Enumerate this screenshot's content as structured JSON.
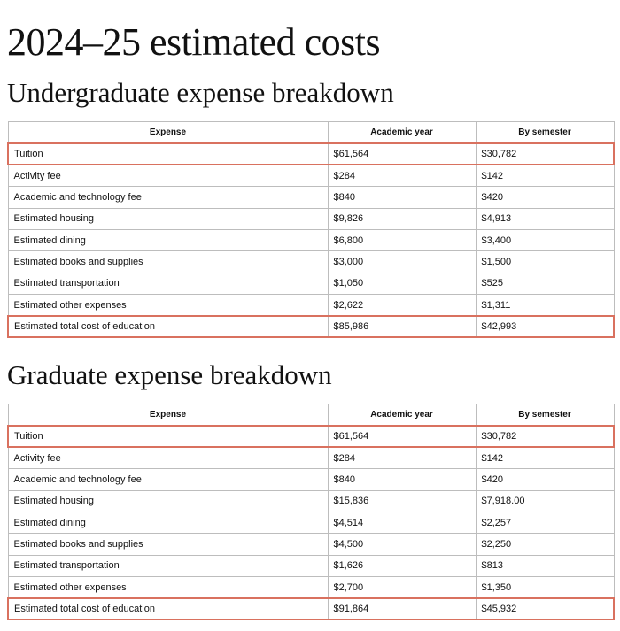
{
  "page_title": "2024–25 estimated costs",
  "columns": [
    "Expense",
    "Academic year",
    "By semester"
  ],
  "undergraduate": {
    "title": "Undergraduate expense breakdown",
    "rows": [
      {
        "expense": "Tuition",
        "academic_year": "$61,564",
        "by_semester": "$30,782",
        "highlighted": true
      },
      {
        "expense": "Activity fee",
        "academic_year": "$284",
        "by_semester": "$142",
        "highlighted": false
      },
      {
        "expense": "Academic and technology fee",
        "academic_year": "$840",
        "by_semester": "$420",
        "highlighted": false
      },
      {
        "expense": "Estimated housing",
        "academic_year": "$9,826",
        "by_semester": "$4,913",
        "highlighted": false
      },
      {
        "expense": "Estimated dining",
        "academic_year": "$6,800",
        "by_semester": "$3,400",
        "highlighted": false
      },
      {
        "expense": "Estimated books and supplies",
        "academic_year": "$3,000",
        "by_semester": "$1,500",
        "highlighted": false
      },
      {
        "expense": "Estimated transportation",
        "academic_year": "$1,050",
        "by_semester": "$525",
        "highlighted": false
      },
      {
        "expense": "Estimated other expenses",
        "academic_year": "$2,622",
        "by_semester": "$1,311",
        "highlighted": false
      },
      {
        "expense": "Estimated total cost of education",
        "academic_year": "$85,986",
        "by_semester": "$42,993",
        "highlighted": true
      }
    ]
  },
  "graduate": {
    "title": "Graduate expense breakdown",
    "rows": [
      {
        "expense": "Tuition",
        "academic_year": "$61,564",
        "by_semester": "$30,782",
        "highlighted": true
      },
      {
        "expense": "Activity fee",
        "academic_year": "$284",
        "by_semester": "$142",
        "highlighted": false
      },
      {
        "expense": "Academic and technology fee",
        "academic_year": "$840",
        "by_semester": "$420",
        "highlighted": false
      },
      {
        "expense": "Estimated housing",
        "academic_year": "$15,836",
        "by_semester": "$7,918.00",
        "highlighted": false
      },
      {
        "expense": "Estimated dining",
        "academic_year": "$4,514",
        "by_semester": "$2,257",
        "highlighted": false
      },
      {
        "expense": "Estimated books and supplies",
        "academic_year": "$4,500",
        "by_semester": "$2,250",
        "highlighted": false
      },
      {
        "expense": "Estimated transportation",
        "academic_year": "$1,626",
        "by_semester": "$813",
        "highlighted": false
      },
      {
        "expense": "Estimated other expenses",
        "academic_year": "$2,700",
        "by_semester": "$1,350",
        "highlighted": false
      },
      {
        "expense": "Estimated total cost of education",
        "academic_year": "$91,864",
        "by_semester": "$45,932",
        "highlighted": true
      }
    ]
  },
  "colors": {
    "highlight_border": "#d9715f",
    "grid_border": "#bdbdbd",
    "text": "#111111",
    "background": "#ffffff"
  }
}
